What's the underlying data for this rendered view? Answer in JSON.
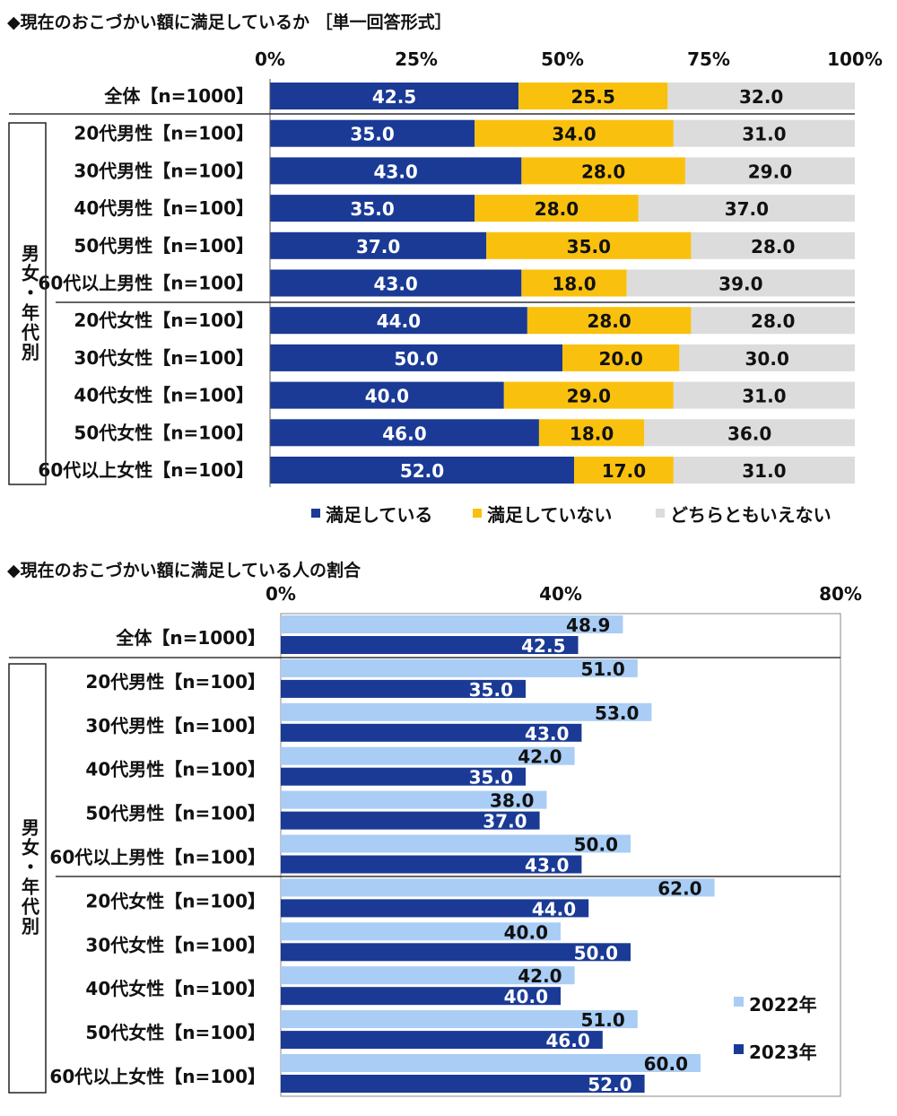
{
  "colors": {
    "satisfied": "#1a3a96",
    "not_satisfied": "#f9c10e",
    "neither": "#dcdcdc",
    "y2022": "#a9cdf5",
    "y2023": "#1a3a96"
  },
  "chart_data": [
    {
      "type": "bar",
      "orientation": "horizontal",
      "stacked": true,
      "title": "◆現在のおこづかい額に満足しているか ［単一回答形式］",
      "x_ticks": [
        "0%",
        "25%",
        "50%",
        "75%",
        "100%"
      ],
      "xlim": [
        0,
        100
      ],
      "group_label": "男女・年代別",
      "categories": [
        "全体【n=1000】",
        "20代男性【n=100】",
        "30代男性【n=100】",
        "40代男性【n=100】",
        "50代男性【n=100】",
        "60代以上男性【n=100】",
        "20代女性【n=100】",
        "30代女性【n=100】",
        "40代女性【n=100】",
        "50代女性【n=100】",
        "60代以上女性【n=100】"
      ],
      "series": [
        {
          "name": "満足している",
          "values": [
            42.5,
            35.0,
            43.0,
            35.0,
            37.0,
            43.0,
            44.0,
            50.0,
            40.0,
            46.0,
            52.0
          ]
        },
        {
          "name": "満足していない",
          "values": [
            25.5,
            34.0,
            28.0,
            28.0,
            35.0,
            18.0,
            28.0,
            20.0,
            29.0,
            18.0,
            17.0
          ]
        },
        {
          "name": "どちらともいえない",
          "values": [
            32.0,
            31.0,
            29.0,
            37.0,
            28.0,
            39.0,
            28.0,
            30.0,
            31.0,
            36.0,
            31.0
          ]
        }
      ],
      "legend": "bottom"
    },
    {
      "type": "bar",
      "orientation": "horizontal",
      "stacked": false,
      "title": "◆現在のおこづかい額に満足している人の割合",
      "x_ticks": [
        "0%",
        "40%",
        "80%"
      ],
      "xlim": [
        0,
        80
      ],
      "group_label": "男女・年代別",
      "categories": [
        "全体【n=1000】",
        "20代男性【n=100】",
        "30代男性【n=100】",
        "40代男性【n=100】",
        "50代男性【n=100】",
        "60代以上男性【n=100】",
        "20代女性【n=100】",
        "30代女性【n=100】",
        "40代女性【n=100】",
        "50代女性【n=100】",
        "60代以上女性【n=100】"
      ],
      "series": [
        {
          "name": "2022年",
          "values": [
            48.9,
            51.0,
            53.0,
            42.0,
            38.0,
            50.0,
            62.0,
            40.0,
            42.0,
            51.0,
            60.0
          ]
        },
        {
          "name": "2023年",
          "values": [
            42.5,
            35.0,
            43.0,
            35.0,
            37.0,
            43.0,
            44.0,
            50.0,
            40.0,
            46.0,
            52.0
          ]
        }
      ],
      "legend": "bottom-right"
    }
  ]
}
